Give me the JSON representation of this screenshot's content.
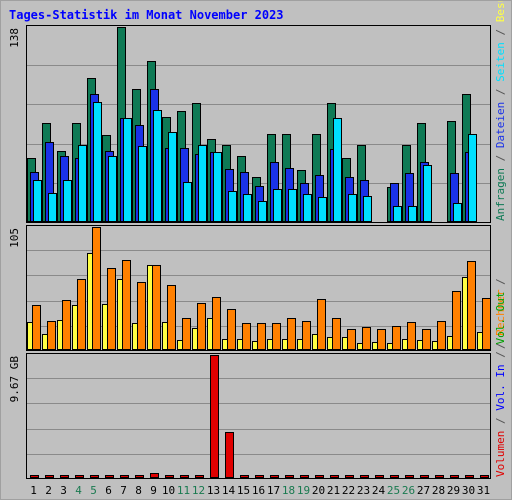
{
  "title": "Tages-Statistik im Monat November 2023",
  "colors": {
    "anfragen": "#0e7a55",
    "dateien": "#1a32e8",
    "seiten": "#00e0ff",
    "besuche": "#ffff44",
    "rechner": "#ff8000",
    "volumen": "#e00000",
    "vol_in": "#0000ff",
    "vol_out": "#00a000",
    "weekend_label": "#1a7a50",
    "weekday_label": "#000000",
    "separator": "#555555"
  },
  "legend_top": [
    {
      "key": "anfragen",
      "text": "Anfragen"
    },
    {
      "key": "separator",
      "text": " / "
    },
    {
      "key": "dateien",
      "text": "Dateien"
    },
    {
      "key": "separator",
      "text": " / "
    },
    {
      "key": "seiten",
      "text": "Seiten"
    },
    {
      "key": "separator",
      "text": " / "
    },
    {
      "key": "besuche",
      "text": "Besuche"
    }
  ],
  "legend_mid": [
    {
      "key": "separator",
      "text": " / "
    },
    {
      "key": "rechner",
      "text": "Rechner"
    }
  ],
  "legend_bot": [
    {
      "key": "volumen",
      "text": "Volumen"
    },
    {
      "key": "separator",
      "text": " / "
    },
    {
      "key": "vol_in",
      "text": "Vol. In"
    },
    {
      "key": "separator",
      "text": " / "
    },
    {
      "key": "vol_out",
      "text": "Vol. Out"
    },
    {
      "key": "separator",
      "text": " / "
    }
  ],
  "chart_data": {
    "type": "bar",
    "title": "Tages-Statistik im Monat November 2023",
    "days": [
      1,
      2,
      3,
      4,
      5,
      6,
      7,
      8,
      9,
      10,
      11,
      12,
      13,
      14,
      15,
      16,
      17,
      18,
      19,
      20,
      21,
      22,
      23,
      24,
      25,
      26,
      27,
      28,
      29,
      30,
      31
    ],
    "weekend_days": [
      4,
      5,
      11,
      12,
      18,
      19,
      25,
      26
    ],
    "panels": [
      {
        "name": "hits",
        "max_label": "138",
        "ylim": [
          0,
          138
        ],
        "series": [
          {
            "name": "Anfragen",
            "key": "anfragen",
            "values": [
              45,
              70,
              50,
              70,
              102,
              61,
              138,
              94,
              114,
              74,
              78,
              84,
              58,
              54,
              46,
              31,
              62,
              62,
              36,
              62,
              84,
              45,
              54,
              0,
              24,
              54,
              70,
              0,
              71,
              90,
              0
            ]
          },
          {
            "name": "Dateien",
            "key": "dateien",
            "values": [
              35,
              56,
              46,
              45,
              90,
              50,
              73,
              68,
              94,
              52,
              52,
              48,
              49,
              37,
              35,
              25,
              42,
              38,
              27,
              33,
              51,
              31,
              29,
              0,
              27,
              34,
              42,
              0,
              34,
              49,
              0
            ]
          },
          {
            "name": "Seiten",
            "key": "seiten",
            "values": [
              29,
              20,
              29,
              54,
              85,
              46,
              73,
              53,
              79,
              63,
              28,
              54,
              49,
              21,
              19,
              14,
              23,
              23,
              19,
              17,
              73,
              19,
              18,
              0,
              11,
              11,
              40,
              0,
              13,
              62,
              0
            ]
          }
        ]
      },
      {
        "name": "visits",
        "max_label": "105",
        "ylim": [
          0,
          105
        ],
        "series": [
          {
            "name": "Besuche",
            "key": "besuche",
            "values": [
              23,
              13,
              25,
              38,
              83,
              39,
              60,
              22,
              72,
              23,
              8,
              18,
              27,
              9,
              9,
              7,
              9,
              9,
              9,
              13,
              10,
              10,
              5,
              6,
              5,
              9,
              8,
              7,
              11,
              62,
              15
            ]
          },
          {
            "name": "Rechner",
            "key": "rechner",
            "values": [
              38,
              24,
              42,
              60,
              105,
              70,
              77,
              58,
              72,
              55,
              27,
              40,
              45,
              34,
              22,
              22,
              22,
              27,
              24,
              43,
              27,
              17,
              19,
              17,
              20,
              23,
              17,
              24,
              50,
              76,
              44
            ]
          }
        ]
      },
      {
        "name": "volume",
        "max_label": "9.67 GB",
        "ylim": [
          0,
          9.67
        ],
        "series": [
          {
            "name": "Volumen",
            "key": "volumen",
            "values": [
              0.02,
              0.02,
              0.02,
              0.02,
              0.02,
              0.02,
              0.02,
              0.02,
              0.3,
              0.02,
              0.02,
              0.02,
              9.67,
              3.6,
              0.02,
              0.02,
              0.02,
              0.02,
              0.02,
              0.02,
              0.02,
              0.02,
              0.02,
              0.02,
              0.02,
              0.02,
              0.02,
              0.02,
              0.02,
              0.02,
              0.02
            ]
          }
        ]
      }
    ]
  }
}
